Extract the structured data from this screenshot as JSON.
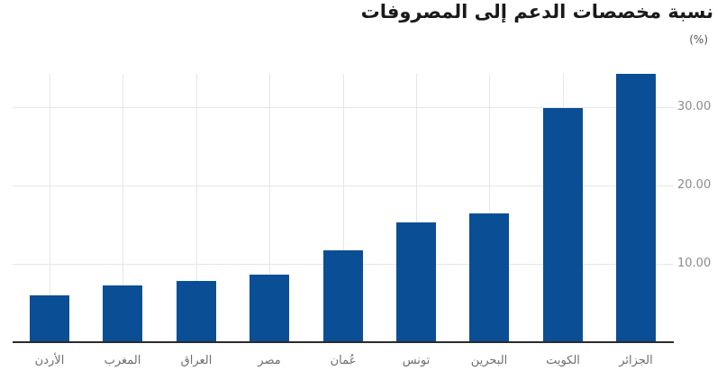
{
  "chart_data": {
    "type": "bar",
    "title": "نسبة مخصصات الدعم إلى المصروفات",
    "unit_label": "(%)",
    "categories": [
      "الأردن",
      "المغرب",
      "العراق",
      "مصر",
      "عُمان",
      "تونس",
      "البحرين",
      "الكويت",
      "الجزائر"
    ],
    "values": [
      6.0,
      7.2,
      7.8,
      8.6,
      11.7,
      15.3,
      16.4,
      29.9,
      34.2
    ],
    "yticks": [
      10,
      20,
      30
    ],
    "ytick_labels": [
      "10.00",
      "20.00",
      "30.00"
    ],
    "ylim": [
      0,
      34.25
    ],
    "grid": true,
    "legend": "none",
    "xlabel": "",
    "ylabel": "(%)",
    "colors": {
      "bar": "#0a4e96",
      "grid": "#e6e6e6",
      "axis_line": "#2b2b2b",
      "ytick_text": "#8c8c8c",
      "xtick_text": "#6e6e6e",
      "title": "#1a1a1a",
      "unit_text": "#555555"
    }
  }
}
